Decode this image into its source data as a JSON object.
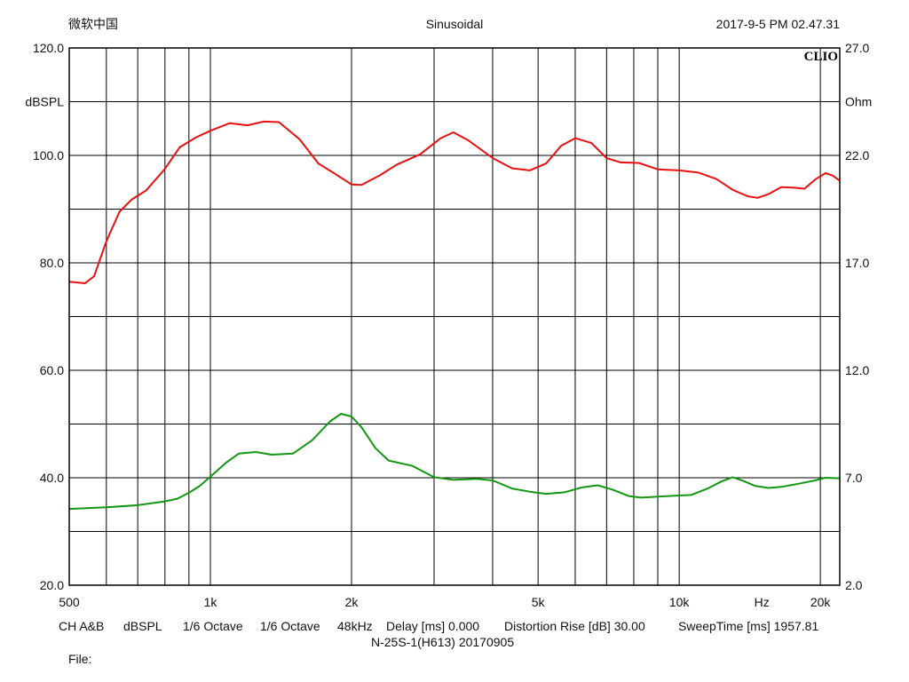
{
  "header": {
    "left": "微软中国",
    "center": "Sinusoidal",
    "right": "2017-9-5 PM 02.47.31"
  },
  "footer": {
    "settings": [
      "CH A&B",
      "dBSPL",
      "1/6 Octave",
      "1/6 Octave",
      "48kHz",
      "Delay [ms] 0.000",
      "Distortion Rise [dB] 30.00",
      "SweepTime [ms] 1957.81"
    ],
    "caption": "N-25S-1(H613)  20170905",
    "file_label": "File:"
  },
  "chart_data": {
    "type": "line",
    "brand": "CLIO",
    "x_scale": "log",
    "xlim": [
      500,
      22000
    ],
    "x_unit_label": "Hz",
    "x_ticks": [
      {
        "value": 500,
        "label": "500"
      },
      {
        "value": 1000,
        "label": "1k"
      },
      {
        "value": 2000,
        "label": "2k"
      },
      {
        "value": 5000,
        "label": "5k"
      },
      {
        "value": 10000,
        "label": "10k"
      },
      {
        "value": 20000,
        "label": "20k"
      }
    ],
    "x_gridlines": [
      600,
      700,
      800,
      900,
      1000,
      2000,
      3000,
      4000,
      5000,
      6000,
      7000,
      8000,
      9000,
      10000,
      20000
    ],
    "ylim_left": [
      20,
      120
    ],
    "ylabel_left": "dBSPL",
    "y_ticks_left": [
      "20.0",
      "40.0",
      "60.0",
      "80.0",
      "100.0",
      "120.0"
    ],
    "ylim_right": [
      2,
      27
    ],
    "ylabel_right": "Ohm",
    "y_ticks_right": [
      "2.0",
      "7.0",
      "12.0",
      "17.0",
      "22.0",
      "27.0"
    ],
    "grid": true,
    "series": [
      {
        "color": "#e81010",
        "axis": "left",
        "points": [
          [
            500,
            76.5
          ],
          [
            540,
            76.2
          ],
          [
            565,
            77.5
          ],
          [
            600,
            84
          ],
          [
            640,
            89.5
          ],
          [
            680,
            91.8
          ],
          [
            730,
            93.5
          ],
          [
            800,
            97.5
          ],
          [
            860,
            101.5
          ],
          [
            930,
            103.3
          ],
          [
            1000,
            104.6
          ],
          [
            1100,
            106
          ],
          [
            1200,
            105.6
          ],
          [
            1300,
            106.3
          ],
          [
            1400,
            106.2
          ],
          [
            1550,
            103
          ],
          [
            1700,
            98.5
          ],
          [
            1850,
            96.5
          ],
          [
            2000,
            94.6
          ],
          [
            2100,
            94.5
          ],
          [
            2300,
            96.3
          ],
          [
            2500,
            98.3
          ],
          [
            2800,
            100.2
          ],
          [
            3100,
            103.2
          ],
          [
            3300,
            104.3
          ],
          [
            3550,
            102.8
          ],
          [
            4000,
            99.5
          ],
          [
            4400,
            97.6
          ],
          [
            4800,
            97.2
          ],
          [
            5200,
            98.5
          ],
          [
            5600,
            101.8
          ],
          [
            6000,
            103.2
          ],
          [
            6500,
            102.3
          ],
          [
            7000,
            99.5
          ],
          [
            7500,
            98.7
          ],
          [
            8200,
            98.6
          ],
          [
            9000,
            97.4
          ],
          [
            10000,
            97.2
          ],
          [
            11000,
            96.8
          ],
          [
            12000,
            95.6
          ],
          [
            13000,
            93.6
          ],
          [
            14000,
            92.4
          ],
          [
            14700,
            92.1
          ],
          [
            15500,
            92.8
          ],
          [
            16500,
            94.1
          ],
          [
            17500,
            94
          ],
          [
            18500,
            93.8
          ],
          [
            19500,
            95.5
          ],
          [
            20500,
            96.7
          ],
          [
            21200,
            96.3
          ],
          [
            22000,
            95.3
          ]
        ]
      },
      {
        "color": "#149614",
        "axis": "left",
        "points": [
          [
            500,
            34.2
          ],
          [
            600,
            34.5
          ],
          [
            700,
            34.9
          ],
          [
            800,
            35.6
          ],
          [
            850,
            36.1
          ],
          [
            900,
            37.2
          ],
          [
            950,
            38.5
          ],
          [
            1000,
            40.2
          ],
          [
            1080,
            42.8
          ],
          [
            1150,
            44.5
          ],
          [
            1250,
            44.8
          ],
          [
            1350,
            44.3
          ],
          [
            1500,
            44.5
          ],
          [
            1650,
            47
          ],
          [
            1800,
            50.5
          ],
          [
            1900,
            51.9
          ],
          [
            2000,
            51.4
          ],
          [
            2100,
            49.4
          ],
          [
            2250,
            45.5
          ],
          [
            2400,
            43.2
          ],
          [
            2700,
            42.2
          ],
          [
            3000,
            40.1
          ],
          [
            3300,
            39.6
          ],
          [
            3700,
            39.8
          ],
          [
            4000,
            39.5
          ],
          [
            4400,
            38
          ],
          [
            4800,
            37.4
          ],
          [
            5200,
            37
          ],
          [
            5700,
            37.3
          ],
          [
            6200,
            38.2
          ],
          [
            6700,
            38.6
          ],
          [
            7200,
            37.8
          ],
          [
            7800,
            36.6
          ],
          [
            8300,
            36.3
          ],
          [
            9000,
            36.5
          ],
          [
            10000,
            36.7
          ],
          [
            10600,
            36.8
          ],
          [
            11500,
            38
          ],
          [
            12300,
            39.3
          ],
          [
            13000,
            40.1
          ],
          [
            13700,
            39.4
          ],
          [
            14500,
            38.5
          ],
          [
            15500,
            38.1
          ],
          [
            16500,
            38.3
          ],
          [
            18000,
            38.9
          ],
          [
            19500,
            39.5
          ],
          [
            20500,
            40
          ],
          [
            22000,
            39.9
          ]
        ]
      }
    ]
  }
}
